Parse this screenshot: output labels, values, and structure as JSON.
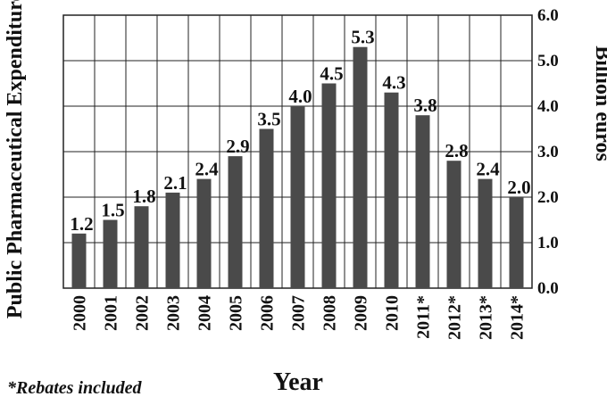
{
  "chart_data": {
    "type": "bar",
    "categories": [
      "2000",
      "2001",
      "2002",
      "2003",
      "2004",
      "2005",
      "2006",
      "2007",
      "2008",
      "2009",
      "2010",
      "2011*",
      "2012*",
      "2013*",
      "2014*"
    ],
    "values": [
      1.2,
      1.5,
      1.8,
      2.1,
      2.4,
      2.9,
      3.5,
      4.0,
      4.5,
      5.3,
      4.3,
      3.8,
      2.8,
      2.4,
      2.0
    ],
    "data_labels": [
      "1.2",
      "1.5",
      "1.8",
      "2.1",
      "2.4",
      "2.9",
      "3.5",
      "4.0",
      "4.5",
      "5.3",
      "4.3",
      "3.8",
      "2.8",
      "2.4",
      "2.0"
    ],
    "ylabel_left": "Public Pharmaceutical Expenditure",
    "ylabel_right": "Billion euros",
    "xlabel": "Year",
    "ylim": [
      0,
      6
    ],
    "yticks": [
      "0.0",
      "1.0",
      "2.0",
      "3.0",
      "4.0",
      "5.0",
      "6.0"
    ],
    "ytick_values": [
      0,
      1,
      2,
      3,
      4,
      5,
      6
    ],
    "grid": true,
    "bar_color": "#4a4a4a",
    "footnote": "*Rebates included"
  }
}
